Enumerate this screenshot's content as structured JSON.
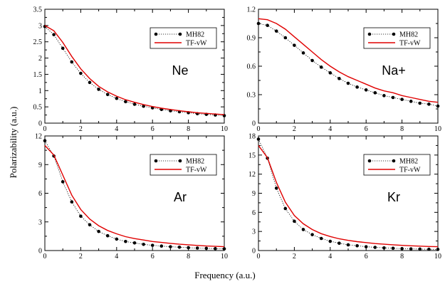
{
  "figure": {
    "ylabel": "Polarizability (a.u.)",
    "xlabel": "Frequency (a.u.)"
  },
  "colors": {
    "mh82": "#000000",
    "tfvw": "#e00000",
    "frame": "#000000"
  },
  "chart_data": [
    {
      "type": "line",
      "panel": "top-left",
      "label": "Ne",
      "xlim": [
        0,
        10
      ],
      "ylim": [
        0,
        3.5
      ],
      "xticks": [
        "0",
        "2",
        "4",
        "6",
        "8",
        "10"
      ],
      "yticks": [
        "0",
        "0.5",
        "1",
        "1.5",
        "2",
        "2.5",
        "3",
        "3.5"
      ],
      "legend_position": "top-right",
      "series": [
        {
          "name": "MH82",
          "style": "dotted-with-circles",
          "x": [
            0,
            0.5,
            1,
            1.5,
            2,
            2.5,
            3,
            3.5,
            4,
            4.5,
            5,
            5.5,
            6,
            6.5,
            7,
            7.5,
            8,
            8.5,
            9,
            9.5,
            10
          ],
          "y": [
            2.97,
            2.72,
            2.3,
            1.88,
            1.53,
            1.25,
            1.04,
            0.88,
            0.76,
            0.66,
            0.58,
            0.52,
            0.47,
            0.42,
            0.38,
            0.35,
            0.32,
            0.29,
            0.27,
            0.25,
            0.23
          ]
        },
        {
          "name": "TF-vW",
          "style": "solid",
          "x": [
            0,
            0.5,
            1,
            1.5,
            2,
            2.5,
            3,
            3.5,
            4,
            4.5,
            5,
            5.5,
            6,
            6.5,
            7,
            7.5,
            8,
            8.5,
            9,
            9.5,
            10
          ],
          "y": [
            3.0,
            2.84,
            2.48,
            2.05,
            1.67,
            1.37,
            1.13,
            0.96,
            0.83,
            0.72,
            0.64,
            0.57,
            0.51,
            0.46,
            0.42,
            0.38,
            0.35,
            0.32,
            0.3,
            0.28,
            0.26
          ]
        }
      ]
    },
    {
      "type": "line",
      "panel": "top-right",
      "label": "Na+",
      "xlim": [
        0,
        10
      ],
      "ylim": [
        0,
        1.2
      ],
      "xticks": [
        "0",
        "2",
        "4",
        "6",
        "8",
        "10"
      ],
      "yticks": [
        "0",
        "0.3",
        "0.6",
        "0.9",
        "1.2"
      ],
      "legend_position": "top-right",
      "series": [
        {
          "name": "MH82",
          "style": "dotted-with-circles",
          "x": [
            0,
            0.5,
            1,
            1.5,
            2,
            2.5,
            3,
            3.5,
            4,
            4.5,
            5,
            5.5,
            6,
            6.5,
            7,
            7.5,
            8,
            8.5,
            9,
            9.5,
            10
          ],
          "y": [
            1.05,
            1.03,
            0.97,
            0.9,
            0.82,
            0.74,
            0.66,
            0.59,
            0.53,
            0.47,
            0.42,
            0.38,
            0.35,
            0.32,
            0.29,
            0.27,
            0.25,
            0.23,
            0.21,
            0.2,
            0.18
          ]
        },
        {
          "name": "TF-vW",
          "style": "solid",
          "x": [
            0,
            0.5,
            1,
            1.5,
            2,
            2.5,
            3,
            3.5,
            4,
            4.5,
            5,
            5.5,
            6,
            6.5,
            7,
            7.5,
            8,
            8.5,
            9,
            9.5,
            10
          ],
          "y": [
            1.1,
            1.09,
            1.05,
            0.99,
            0.91,
            0.83,
            0.75,
            0.67,
            0.6,
            0.54,
            0.49,
            0.45,
            0.41,
            0.37,
            0.34,
            0.32,
            0.29,
            0.27,
            0.25,
            0.23,
            0.22
          ]
        }
      ]
    },
    {
      "type": "line",
      "panel": "bottom-left",
      "label": "Ar",
      "xlim": [
        0,
        10
      ],
      "ylim": [
        0,
        12
      ],
      "xticks": [
        "0",
        "2",
        "4",
        "6",
        "8",
        "10"
      ],
      "yticks": [
        "0",
        "3",
        "6",
        "9",
        "12"
      ],
      "legend_position": "top-right",
      "series": [
        {
          "name": "MH82",
          "style": "dotted-with-circles",
          "x": [
            0,
            0.5,
            1,
            1.5,
            2,
            2.5,
            3,
            3.5,
            4,
            4.5,
            5,
            5.5,
            6,
            6.5,
            7,
            7.5,
            8,
            8.5,
            9,
            9.5,
            10
          ],
          "y": [
            11.5,
            9.9,
            7.2,
            5.1,
            3.6,
            2.7,
            2.0,
            1.55,
            1.2,
            0.95,
            0.8,
            0.65,
            0.55,
            0.47,
            0.4,
            0.35,
            0.3,
            0.26,
            0.23,
            0.2,
            0.18
          ]
        },
        {
          "name": "TF-vW",
          "style": "solid",
          "x": [
            0,
            0.5,
            1,
            1.5,
            2,
            2.5,
            3,
            3.5,
            4,
            4.5,
            5,
            5.5,
            6,
            6.5,
            7,
            7.5,
            8,
            8.5,
            9,
            9.5,
            10
          ],
          "y": [
            11.0,
            10.0,
            7.9,
            5.8,
            4.3,
            3.3,
            2.6,
            2.1,
            1.75,
            1.45,
            1.25,
            1.1,
            0.95,
            0.85,
            0.75,
            0.66,
            0.6,
            0.54,
            0.48,
            0.44,
            0.4
          ]
        }
      ]
    },
    {
      "type": "line",
      "panel": "bottom-right",
      "label": "Kr",
      "xlim": [
        0,
        10
      ],
      "ylim": [
        0,
        18
      ],
      "xticks": [
        "0",
        "2",
        "4",
        "6",
        "8",
        "10"
      ],
      "yticks": [
        "0",
        "3",
        "6",
        "9",
        "12",
        "15",
        "18"
      ],
      "legend_position": "top-right",
      "series": [
        {
          "name": "MH82",
          "style": "dotted-with-circles",
          "x": [
            0,
            0.5,
            1,
            1.5,
            2,
            2.5,
            3,
            3.5,
            4,
            4.5,
            5,
            5.5,
            6,
            6.5,
            7,
            7.5,
            8,
            8.5,
            9,
            9.5,
            10
          ],
          "y": [
            17.5,
            14.5,
            9.8,
            6.6,
            4.6,
            3.3,
            2.5,
            1.9,
            1.45,
            1.15,
            0.9,
            0.75,
            0.6,
            0.5,
            0.42,
            0.36,
            0.3,
            0.26,
            0.23,
            0.2,
            0.18
          ]
        },
        {
          "name": "TF-vW",
          "style": "solid",
          "x": [
            0,
            0.5,
            1,
            1.5,
            2,
            2.5,
            3,
            3.5,
            4,
            4.5,
            5,
            5.5,
            6,
            6.5,
            7,
            7.5,
            8,
            8.5,
            9,
            9.5,
            10
          ],
          "y": [
            16.5,
            14.6,
            10.7,
            7.6,
            5.5,
            4.2,
            3.3,
            2.65,
            2.2,
            1.85,
            1.6,
            1.4,
            1.25,
            1.1,
            1.0,
            0.9,
            0.82,
            0.75,
            0.69,
            0.64,
            0.6
          ]
        }
      ]
    }
  ]
}
